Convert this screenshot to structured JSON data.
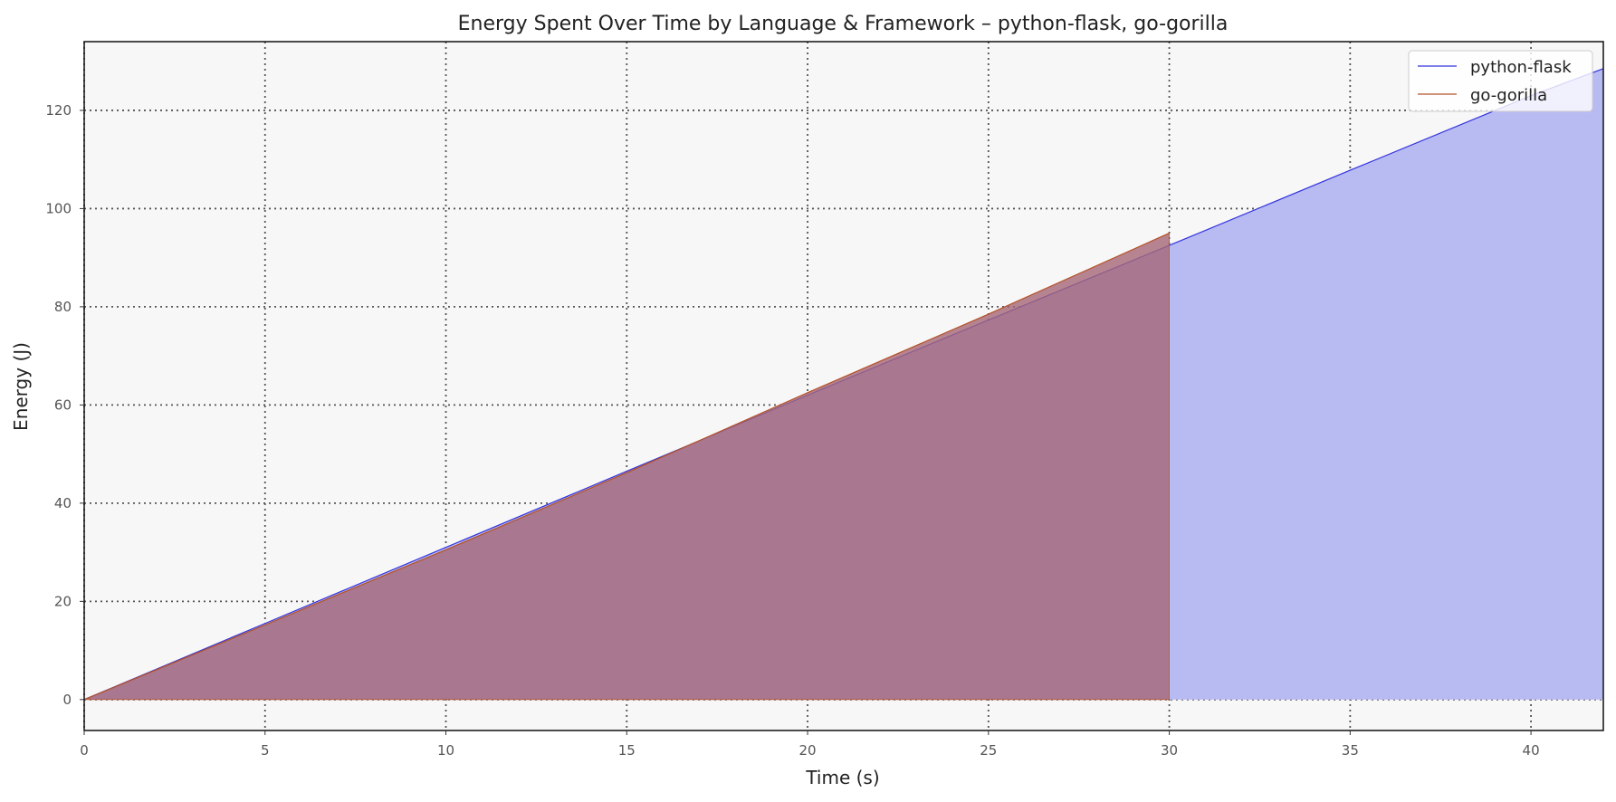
{
  "chart_data": {
    "type": "area",
    "title": "Energy Spent Over Time by Language & Framework – python-flask, go-gorilla",
    "xlabel": "Time (s)",
    "ylabel": "Energy (J)",
    "xlim": [
      0,
      42
    ],
    "ylim": [
      -6.3,
      134
    ],
    "xticks": [
      0,
      5,
      10,
      15,
      20,
      25,
      30,
      35,
      40
    ],
    "yticks": [
      0,
      20,
      40,
      60,
      80,
      100,
      120
    ],
    "grid": true,
    "legend_position": "top-right",
    "series": [
      {
        "name": "python-flask",
        "color": "#3333dd",
        "fill": "#b8bbf2",
        "x": [
          0,
          5,
          10,
          15,
          20,
          25,
          30,
          35,
          40,
          42
        ],
        "y": [
          0,
          15.5,
          31,
          46.5,
          62,
          77.3,
          92.5,
          107.8,
          123,
          128.5
        ]
      },
      {
        "name": "go-gorilla",
        "color": "#b5532a",
        "fill": "#a56776",
        "x": [
          0,
          5,
          10,
          15,
          20,
          25,
          30
        ],
        "y": [
          0,
          15.2,
          30.5,
          46.2,
          62.5,
          78.5,
          95
        ]
      }
    ]
  }
}
